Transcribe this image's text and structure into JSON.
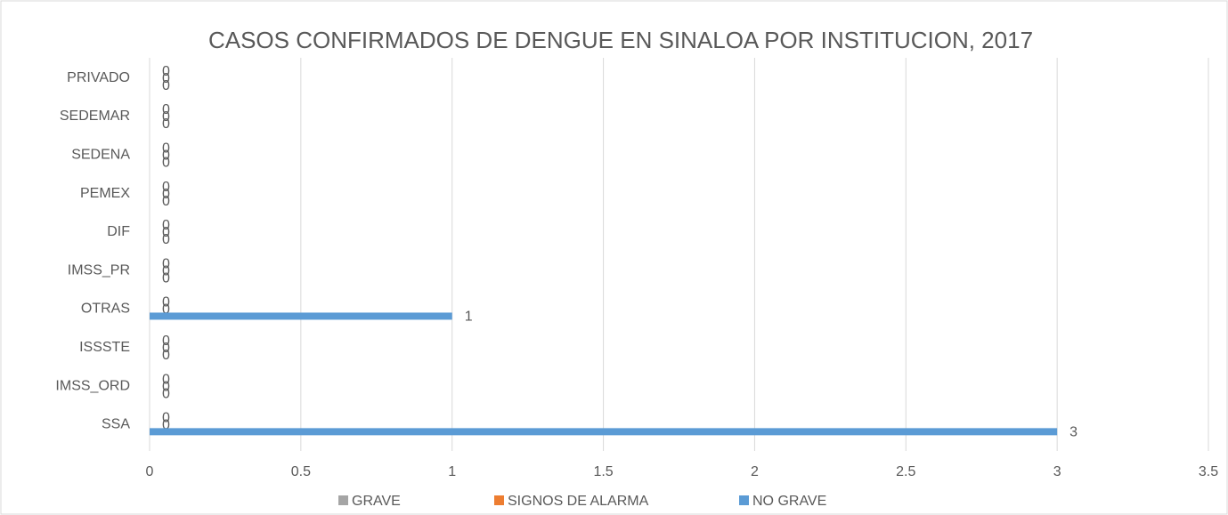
{
  "chart_data": {
    "type": "bar",
    "orientation": "horizontal",
    "title": "CASOS CONFIRMADOS DE DENGUE EN SINALOA POR INSTITUCION, 2017",
    "categories": [
      "SSA",
      "IMSS_ORD",
      "ISSSTE",
      "OTRAS",
      "IMSS_PR",
      "DIF",
      "PEMEX",
      "SEDENA",
      "SEDEMAR",
      "PRIVADO"
    ],
    "series": [
      {
        "name": "GRAVE",
        "color": "#a5a5a5",
        "values": [
          0,
          0,
          0,
          0,
          0,
          0,
          0,
          0,
          0,
          0
        ]
      },
      {
        "name": "SIGNOS DE ALARMA",
        "color": "#ed7d31",
        "values": [
          0,
          0,
          0,
          0,
          0,
          0,
          0,
          0,
          0,
          0
        ]
      },
      {
        "name": "NO GRAVE",
        "color": "#5b9bd5",
        "values": [
          3,
          0,
          0,
          1,
          0,
          0,
          0,
          0,
          0,
          0
        ]
      }
    ],
    "xlim": [
      0,
      3.5
    ],
    "xticks": [
      0,
      0.5,
      1,
      1.5,
      2,
      2.5,
      3,
      3.5
    ],
    "grid": true,
    "legend": "bottom"
  }
}
